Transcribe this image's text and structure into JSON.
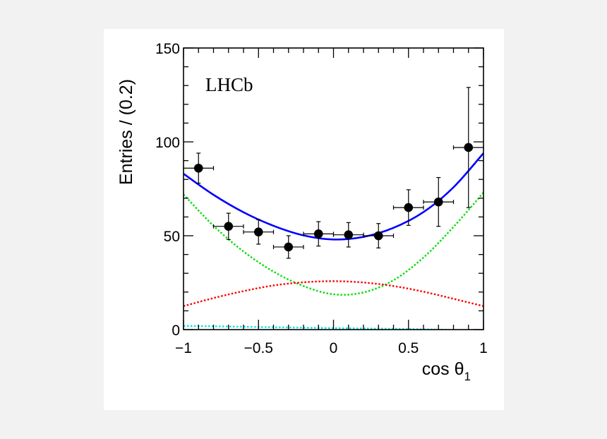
{
  "chart_data": {
    "type": "scatter",
    "title": "",
    "annotation": "LHCb",
    "xlabel_main": "cos θ",
    "xlabel_sub": "1",
    "ylabel": "Entries / (0.2)",
    "xlim": [
      -1,
      1
    ],
    "ylim": [
      0,
      150
    ],
    "x_ticks": [
      -1,
      -0.5,
      0,
      0.5,
      1
    ],
    "x_tick_labels": [
      "−1",
      "−0.5",
      "0",
      "0.5",
      "1"
    ],
    "y_ticks": [
      0,
      50,
      100,
      150
    ],
    "y_tick_labels": [
      "0",
      "50",
      "100",
      "150"
    ],
    "grid": false,
    "points": {
      "x": [
        -0.9,
        -0.7,
        -0.5,
        -0.3,
        -0.1,
        0.1,
        0.3,
        0.5,
        0.7,
        0.9
      ],
      "y": [
        86,
        55,
        52,
        44,
        51,
        50.5,
        50,
        65,
        68,
        97
      ],
      "x_err": 0.1,
      "y_err": [
        8,
        7,
        6.5,
        6,
        6.5,
        6.5,
        6.5,
        9.5,
        13,
        32
      ],
      "color": "#000000"
    },
    "curves": [
      {
        "color": "#0000ff",
        "style": "solid",
        "x": [
          -1,
          -0.8,
          -0.6,
          -0.4,
          -0.2,
          0,
          0.2,
          0.4,
          0.6,
          0.8,
          1
        ],
        "y": [
          83,
          71.8,
          62.5,
          55.3,
          50.2,
          48,
          49.4,
          54.2,
          62.6,
          75.8,
          94
        ]
      },
      {
        "color": "#00e000",
        "style": "dotted",
        "x": [
          -1,
          -0.8,
          -0.6,
          -0.4,
          -0.2,
          0,
          0.2,
          0.4,
          0.6,
          0.8,
          1
        ],
        "y": [
          72,
          55.3,
          41.6,
          30.9,
          23.2,
          18.8,
          19.8,
          26.3,
          38.4,
          54.7,
          73
        ]
      },
      {
        "color": "#ff0000",
        "style": "dotted",
        "x": [
          -1,
          -0.8,
          -0.6,
          -0.4,
          -0.2,
          0,
          0.2,
          0.4,
          0.6,
          0.8,
          1
        ],
        "y": [
          12.5,
          16.8,
          20.5,
          23.5,
          25.2,
          25.8,
          25.1,
          23.2,
          20.2,
          16.4,
          12.5
        ]
      },
      {
        "color": "#00e5e5",
        "style": "dotted",
        "x": [
          -1,
          -0.5,
          0,
          0.5,
          1
        ],
        "y": [
          2,
          1.4,
          0.8,
          0.3,
          -0.5
        ]
      }
    ]
  }
}
